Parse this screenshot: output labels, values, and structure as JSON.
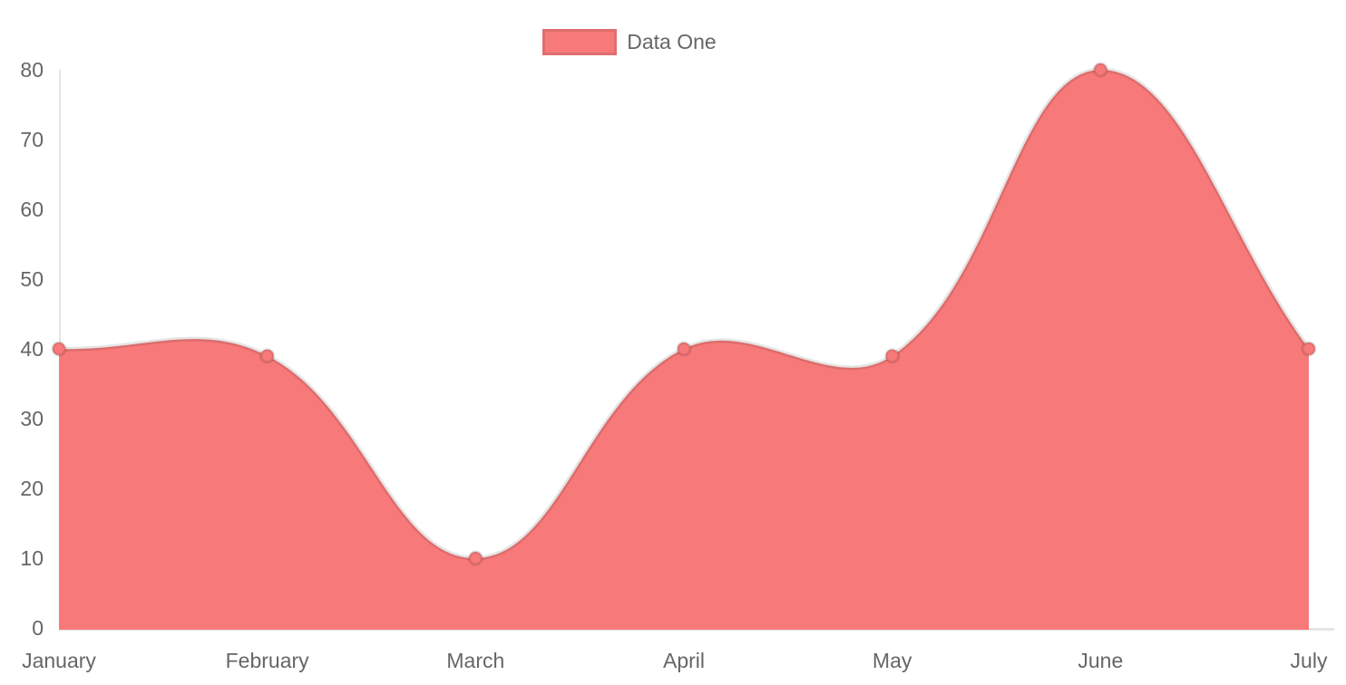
{
  "chart_data": {
    "type": "area",
    "title": "",
    "categories": [
      "January",
      "February",
      "March",
      "April",
      "May",
      "June",
      "July"
    ],
    "series": [
      {
        "name": "Data One",
        "values": [
          40,
          39,
          10,
          40,
          39,
          80,
          40
        ]
      }
    ],
    "xlabel": "",
    "ylabel": "",
    "ylim": [
      0,
      80
    ],
    "yticks": [
      0,
      10,
      20,
      30,
      40,
      50,
      60,
      70,
      80
    ],
    "grid": false,
    "legend_position": "top",
    "line_tension": 0.4,
    "colors": {
      "fill": "#f87979",
      "line": "rgba(0,0,0,0.1)",
      "point_fill": "#f87979",
      "point_border": "rgba(0,0,0,0.12)",
      "axis_line": "rgba(0,0,0,0.1)",
      "text": "#666666"
    }
  },
  "legend": {
    "items": [
      {
        "label": "Data One",
        "color": "#f87979"
      }
    ]
  }
}
